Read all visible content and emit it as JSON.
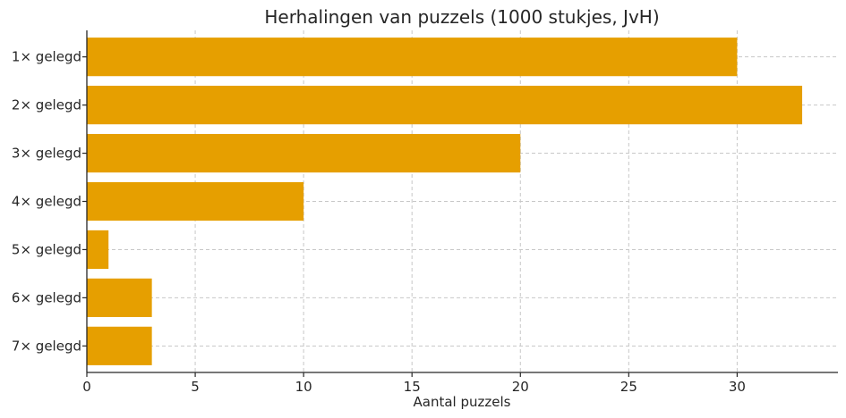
{
  "chart_data": {
    "type": "bar",
    "orientation": "horizontal",
    "title": "Herhalingen van puzzels (1000 stukjes, JvH)",
    "xlabel": "Aantal puzzels",
    "ylabel": "",
    "categories": [
      "1× gelegd",
      "2× gelegd",
      "3× gelegd",
      "4× gelegd",
      "5× gelegd",
      "6× gelegd",
      "7× gelegd"
    ],
    "values": [
      30,
      33,
      20,
      10,
      1,
      3,
      3
    ],
    "xlim": [
      0,
      34.65
    ],
    "xticks": [
      0,
      5,
      10,
      15,
      20,
      25,
      30
    ],
    "grid": true,
    "bar_color": "#E69F00"
  }
}
